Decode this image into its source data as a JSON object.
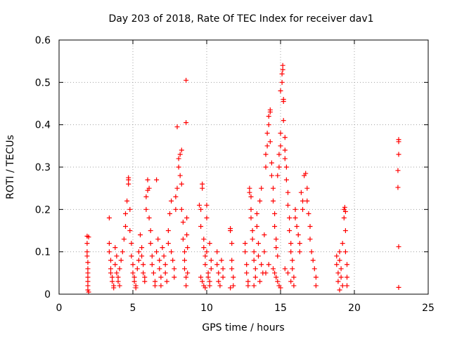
{
  "chart_data": {
    "type": "scatter",
    "title": "Day 203 of 2018, Rate Of TEC Index for receiver dav1",
    "xlabel": "GPS time / hours",
    "ylabel": "ROTI / TECUs",
    "xlim": [
      0,
      25
    ],
    "ylim": [
      0,
      0.6
    ],
    "xticks": [
      0,
      5,
      10,
      15,
      20,
      25
    ],
    "xtick_labels": [
      "0",
      "5",
      "10",
      "15",
      "20",
      "25"
    ],
    "yticks": [
      0,
      0.1,
      0.2,
      0.3,
      0.4,
      0.5,
      0.6
    ],
    "ytick_labels": [
      "0",
      "0.1",
      "0.2",
      "0.3",
      "0.4",
      "0.5",
      "0.6"
    ],
    "grid": true,
    "marker": "+",
    "color": "#ff0000",
    "series": [
      {
        "name": "dav1",
        "points": [
          [
            1.9,
            0.137
          ],
          [
            1.9,
            0.12
          ],
          [
            1.9,
            0.1
          ],
          [
            1.9,
            0.09
          ],
          [
            1.95,
            0.075
          ],
          [
            1.95,
            0.06
          ],
          [
            1.95,
            0.05
          ],
          [
            1.95,
            0.04
          ],
          [
            1.95,
            0.03
          ],
          [
            1.95,
            0.02
          ],
          [
            1.95,
            0.01
          ],
          [
            2.0,
            0.005
          ],
          [
            2.0,
            0.135
          ],
          [
            3.4,
            0.18
          ],
          [
            3.4,
            0.12
          ],
          [
            3.4,
            0.1
          ],
          [
            3.5,
            0.08
          ],
          [
            3.5,
            0.06
          ],
          [
            3.5,
            0.05
          ],
          [
            3.6,
            0.04
          ],
          [
            3.6,
            0.03
          ],
          [
            3.7,
            0.02
          ],
          [
            3.7,
            0.015
          ],
          [
            3.8,
            0.07
          ],
          [
            3.8,
            0.11
          ],
          [
            3.9,
            0.09
          ],
          [
            3.9,
            0.05
          ],
          [
            4.0,
            0.04
          ],
          [
            4.0,
            0.03
          ],
          [
            4.1,
            0.02
          ],
          [
            4.1,
            0.06
          ],
          [
            4.2,
            0.08
          ],
          [
            4.3,
            0.1
          ],
          [
            4.4,
            0.13
          ],
          [
            4.5,
            0.16
          ],
          [
            4.5,
            0.19
          ],
          [
            4.6,
            0.22
          ],
          [
            4.7,
            0.26
          ],
          [
            4.7,
            0.275
          ],
          [
            4.7,
            0.27
          ],
          [
            4.8,
            0.2
          ],
          [
            4.8,
            0.15
          ],
          [
            4.9,
            0.12
          ],
          [
            4.9,
            0.09
          ],
          [
            5.0,
            0.07
          ],
          [
            5.0,
            0.05
          ],
          [
            5.1,
            0.04
          ],
          [
            5.1,
            0.03
          ],
          [
            5.2,
            0.02
          ],
          [
            5.2,
            0.015
          ],
          [
            5.3,
            0.06
          ],
          [
            5.4,
            0.08
          ],
          [
            5.4,
            0.1
          ],
          [
            5.5,
            0.14
          ],
          [
            5.6,
            0.11
          ],
          [
            5.6,
            0.09
          ],
          [
            5.7,
            0.07
          ],
          [
            5.7,
            0.05
          ],
          [
            5.8,
            0.04
          ],
          [
            5.8,
            0.03
          ],
          [
            5.9,
            0.2
          ],
          [
            5.9,
            0.23
          ],
          [
            6.0,
            0.245
          ],
          [
            6.0,
            0.27
          ],
          [
            6.1,
            0.25
          ],
          [
            6.1,
            0.18
          ],
          [
            6.2,
            0.15
          ],
          [
            6.2,
            0.12
          ],
          [
            6.3,
            0.09
          ],
          [
            6.3,
            0.07
          ],
          [
            6.4,
            0.05
          ],
          [
            6.5,
            0.03
          ],
          [
            6.5,
            0.02
          ],
          [
            6.6,
            0.27
          ],
          [
            6.6,
            0.1
          ],
          [
            6.7,
            0.13
          ],
          [
            6.8,
            0.08
          ],
          [
            6.8,
            0.06
          ],
          [
            6.9,
            0.04
          ],
          [
            6.9,
            0.02
          ],
          [
            7.0,
            0.11
          ],
          [
            7.1,
            0.09
          ],
          [
            7.2,
            0.07
          ],
          [
            7.2,
            0.05
          ],
          [
            7.3,
            0.03
          ],
          [
            7.4,
            0.12
          ],
          [
            7.4,
            0.15
          ],
          [
            7.5,
            0.19
          ],
          [
            7.6,
            0.22
          ],
          [
            7.6,
            0.1
          ],
          [
            7.7,
            0.08
          ],
          [
            7.8,
            0.06
          ],
          [
            7.8,
            0.04
          ],
          [
            7.9,
            0.2
          ],
          [
            7.9,
            0.23
          ],
          [
            8.0,
            0.25
          ],
          [
            8.0,
            0.395
          ],
          [
            8.1,
            0.3
          ],
          [
            8.1,
            0.32
          ],
          [
            8.2,
            0.33
          ],
          [
            8.2,
            0.28
          ],
          [
            8.3,
            0.26
          ],
          [
            8.3,
            0.34
          ],
          [
            8.3,
            0.2
          ],
          [
            8.4,
            0.17
          ],
          [
            8.4,
            0.13
          ],
          [
            8.5,
            0.1
          ],
          [
            8.5,
            0.08
          ],
          [
            8.5,
            0.06
          ],
          [
            8.6,
            0.04
          ],
          [
            8.6,
            0.02
          ],
          [
            8.6,
            0.505
          ],
          [
            8.6,
            0.405
          ],
          [
            8.65,
            0.18
          ],
          [
            8.65,
            0.14
          ],
          [
            8.7,
            0.11
          ],
          [
            8.7,
            0.05
          ],
          [
            9.5,
            0.21
          ],
          [
            9.6,
            0.2
          ],
          [
            9.6,
            0.16
          ],
          [
            9.7,
            0.25
          ],
          [
            9.7,
            0.26
          ],
          [
            9.8,
            0.13
          ],
          [
            9.8,
            0.11
          ],
          [
            9.9,
            0.09
          ],
          [
            9.9,
            0.07
          ],
          [
            10.0,
            0.21
          ],
          [
            10.0,
            0.18
          ],
          [
            10.1,
            0.05
          ],
          [
            10.1,
            0.04
          ],
          [
            10.2,
            0.03
          ],
          [
            10.2,
            0.02
          ],
          [
            10.3,
            0.06
          ],
          [
            10.3,
            0.08
          ],
          [
            9.6,
            0.04
          ],
          [
            9.7,
            0.03
          ],
          [
            9.8,
            0.02
          ],
          [
            9.9,
            0.015
          ],
          [
            10.0,
            0.1
          ],
          [
            10.2,
            0.12
          ],
          [
            10.7,
            0.1
          ],
          [
            10.7,
            0.07
          ],
          [
            10.8,
            0.05
          ],
          [
            10.8,
            0.03
          ],
          [
            10.9,
            0.02
          ],
          [
            11.0,
            0.08
          ],
          [
            11.1,
            0.06
          ],
          [
            11.1,
            0.04
          ],
          [
            11.6,
            0.155
          ],
          [
            11.6,
            0.15
          ],
          [
            11.7,
            0.12
          ],
          [
            11.7,
            0.08
          ],
          [
            11.7,
            0.06
          ],
          [
            11.8,
            0.04
          ],
          [
            11.8,
            0.02
          ],
          [
            11.6,
            0.015
          ],
          [
            12.6,
            0.12
          ],
          [
            12.6,
            0.1
          ],
          [
            12.7,
            0.07
          ],
          [
            12.7,
            0.05
          ],
          [
            12.8,
            0.03
          ],
          [
            12.8,
            0.02
          ],
          [
            12.9,
            0.25
          ],
          [
            12.9,
            0.24
          ],
          [
            13.0,
            0.23
          ],
          [
            13.0,
            0.2
          ],
          [
            13.0,
            0.18
          ],
          [
            13.1,
            0.15
          ],
          [
            13.1,
            0.13
          ],
          [
            13.2,
            0.1
          ],
          [
            13.2,
            0.08
          ],
          [
            13.3,
            0.06
          ],
          [
            13.3,
            0.04
          ],
          [
            13.4,
            0.16
          ],
          [
            13.4,
            0.19
          ],
          [
            13.5,
            0.12
          ],
          [
            13.5,
            0.09
          ],
          [
            13.6,
            0.22
          ],
          [
            13.7,
            0.25
          ],
          [
            13.7,
            0.07
          ],
          [
            13.8,
            0.05
          ],
          [
            13.9,
            0.1
          ],
          [
            13.9,
            0.14
          ],
          [
            14.0,
            0.3
          ],
          [
            14.0,
            0.33
          ],
          [
            14.1,
            0.35
          ],
          [
            14.1,
            0.38
          ],
          [
            14.2,
            0.4
          ],
          [
            14.2,
            0.42
          ],
          [
            14.3,
            0.43
          ],
          [
            14.3,
            0.435
          ],
          [
            14.3,
            0.36
          ],
          [
            14.4,
            0.31
          ],
          [
            14.4,
            0.28
          ],
          [
            14.5,
            0.25
          ],
          [
            14.5,
            0.22
          ],
          [
            14.6,
            0.19
          ],
          [
            14.6,
            0.16
          ],
          [
            14.7,
            0.13
          ],
          [
            14.7,
            0.11
          ],
          [
            14.8,
            0.09
          ],
          [
            14.8,
            0.28
          ],
          [
            14.9,
            0.3
          ],
          [
            14.9,
            0.33
          ],
          [
            15.0,
            0.35
          ],
          [
            15.0,
            0.38
          ],
          [
            15.0,
            0.48
          ],
          [
            15.1,
            0.5
          ],
          [
            15.1,
            0.52
          ],
          [
            15.15,
            0.54
          ],
          [
            15.15,
            0.53
          ],
          [
            15.2,
            0.46
          ],
          [
            15.2,
            0.455
          ],
          [
            15.2,
            0.41
          ],
          [
            15.3,
            0.37
          ],
          [
            15.3,
            0.34
          ],
          [
            15.3,
            0.32
          ],
          [
            15.4,
            0.3
          ],
          [
            15.4,
            0.27
          ],
          [
            15.5,
            0.24
          ],
          [
            15.5,
            0.21
          ],
          [
            15.6,
            0.18
          ],
          [
            15.6,
            0.15
          ],
          [
            15.7,
            0.12
          ],
          [
            15.7,
            0.1
          ],
          [
            15.8,
            0.08
          ],
          [
            15.8,
            0.06
          ],
          [
            15.9,
            0.04
          ],
          [
            15.9,
            0.02
          ],
          [
            16.0,
            0.2
          ],
          [
            16.0,
            0.18
          ],
          [
            16.1,
            0.16
          ],
          [
            16.2,
            0.14
          ],
          [
            16.3,
            0.12
          ],
          [
            16.3,
            0.1
          ],
          [
            16.4,
            0.24
          ],
          [
            16.5,
            0.22
          ],
          [
            16.5,
            0.2
          ],
          [
            16.6,
            0.28
          ],
          [
            16.7,
            0.285
          ],
          [
            16.8,
            0.25
          ],
          [
            16.8,
            0.22
          ],
          [
            16.9,
            0.19
          ],
          [
            17.0,
            0.16
          ],
          [
            17.0,
            0.13
          ],
          [
            17.1,
            0.1
          ],
          [
            17.2,
            0.08
          ],
          [
            17.3,
            0.06
          ],
          [
            17.4,
            0.04
          ],
          [
            17.4,
            0.02
          ],
          [
            14.5,
            0.06
          ],
          [
            14.6,
            0.05
          ],
          [
            14.7,
            0.04
          ],
          [
            14.8,
            0.03
          ],
          [
            14.9,
            0.02
          ],
          [
            15.0,
            0.015
          ],
          [
            15.3,
            0.06
          ],
          [
            15.5,
            0.05
          ],
          [
            15.7,
            0.03
          ],
          [
            14.2,
            0.07
          ],
          [
            14.0,
            0.05
          ],
          [
            13.6,
            0.03
          ],
          [
            13.2,
            0.02
          ],
          [
            18.8,
            0.09
          ],
          [
            18.8,
            0.07
          ],
          [
            18.9,
            0.05
          ],
          [
            18.9,
            0.03
          ],
          [
            19.0,
            0.1
          ],
          [
            19.0,
            0.08
          ],
          [
            19.1,
            0.06
          ],
          [
            19.1,
            0.04
          ],
          [
            19.2,
            0.02
          ],
          [
            19.2,
            0.12
          ],
          [
            19.3,
            0.2
          ],
          [
            19.3,
            0.18
          ],
          [
            19.35,
            0.205
          ],
          [
            19.4,
            0.195
          ],
          [
            19.4,
            0.15
          ],
          [
            19.4,
            0.1
          ],
          [
            19.5,
            0.07
          ],
          [
            19.5,
            0.04
          ],
          [
            19.5,
            0.02
          ],
          [
            19.0,
            0.01
          ],
          [
            23.0,
            0.365
          ],
          [
            23.0,
            0.36
          ],
          [
            23.0,
            0.33
          ],
          [
            22.95,
            0.292
          ],
          [
            22.95,
            0.252
          ],
          [
            23.0,
            0.112
          ],
          [
            23.0,
            0.016
          ]
        ]
      }
    ]
  }
}
